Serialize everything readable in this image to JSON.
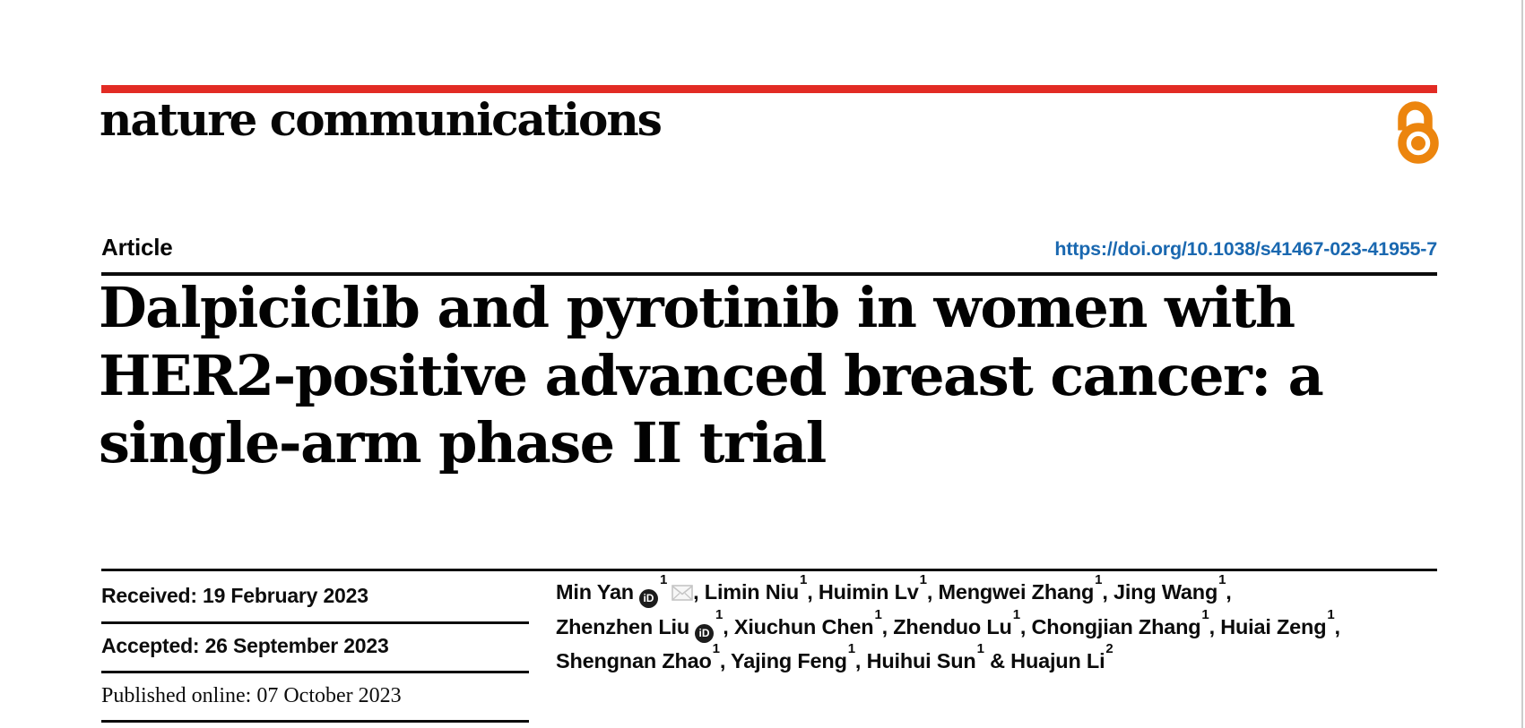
{
  "journal": {
    "name": "nature communications",
    "brand_red": "#e22b24",
    "open_access_color": "#ec850e",
    "open_access_icon": "open-padlock"
  },
  "article": {
    "kind_label": "Article",
    "doi_url": "https://doi.org/10.1038/s41467-023-41955-7",
    "doi_color": "#1a68b0",
    "title_lines": [
      "Dalpiciclib and pyrotinib in women with",
      "HER2-positive advanced breast cancer: a",
      "single-arm phase II trial"
    ]
  },
  "history": [
    {
      "text": "Received: 19 February 2023"
    },
    {
      "text": "Accepted: 26 September 2023"
    },
    {
      "text": "Published online: 07 October 2023"
    }
  ],
  "icons": {
    "orcid_badge_text": "iD",
    "email": "envelope",
    "email_color": "#c5c5c5"
  },
  "authors": {
    "lines": [
      [
        {
          "name": "Min Yan",
          "sup": "1",
          "orcid": true,
          "email": true,
          "sep": ", "
        },
        {
          "name": "Limin Niu",
          "sup": "1",
          "sep": ", "
        },
        {
          "name": "Huimin Lv",
          "sup": "1",
          "sep": ", "
        },
        {
          "name": "Mengwei Zhang",
          "sup": "1",
          "sep": ", "
        },
        {
          "name": "Jing Wang",
          "sup": "1",
          "sep": ","
        }
      ],
      [
        {
          "name": "Zhenzhen Liu",
          "sup": "1",
          "orcid": true,
          "sep": ", "
        },
        {
          "name": "Xiuchun Chen",
          "sup": "1",
          "sep": ", "
        },
        {
          "name": "Zhenduo Lu",
          "sup": "1",
          "sep": ", "
        },
        {
          "name": "Chongjian Zhang",
          "sup": "1",
          "sep": ", "
        },
        {
          "name": "Huiai Zeng",
          "sup": "1",
          "sep": ","
        }
      ],
      [
        {
          "name": "Shengnan Zhao",
          "sup": "1",
          "sep": ", "
        },
        {
          "name": "Yajing Feng",
          "sup": "1",
          "sep": ", "
        },
        {
          "name": "Huihui Sun",
          "sup": "1",
          "sep": " & "
        },
        {
          "name": "Huajun Li",
          "sup": "2",
          "sep": ""
        }
      ]
    ]
  }
}
